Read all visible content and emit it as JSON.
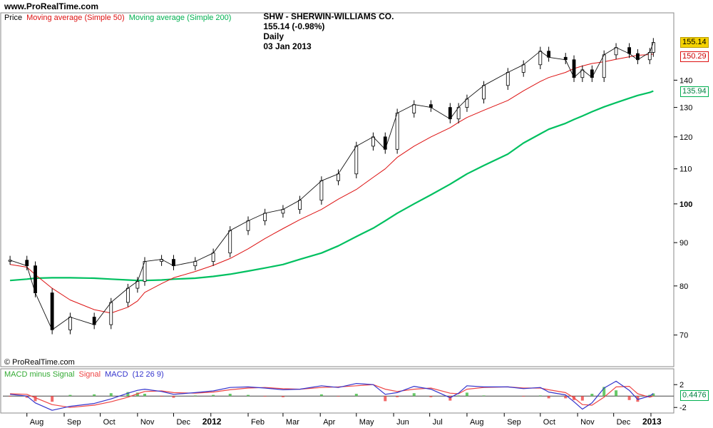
{
  "header": {
    "site": "www.ProRealTime.com",
    "ticker": "SHW - SHERWIN-WILLIAMS CO.",
    "quote": "155.14 (-0.98%)",
    "period": "Daily",
    "date": "03 Jan 2013"
  },
  "price_legend": {
    "price": "Price",
    "ma50": "Moving average (Simple 50)",
    "ma200": "Moving average (Simple 200)"
  },
  "macd_legend": {
    "hist": "MACD minus Signal",
    "signal": "Signal",
    "macd": "MACD",
    "params": "(12 26 9)"
  },
  "credit": "© ProRealTime.com",
  "colors": {
    "ma50": "#dd1111",
    "ma200": "#00c060",
    "macd": "#3333cc",
    "signal": "#ee4444",
    "hist": "#44bb44",
    "last_price_bg": "#f5d200"
  },
  "chart_data": [
    {
      "type": "line",
      "title": "SHW - SHERWIN-WILLIAMS CO. Daily (price, log scale)",
      "scale": "log",
      "ylim": [
        66,
        163
      ],
      "yticks": [
        70,
        80,
        90,
        100,
        110,
        120,
        130,
        140
      ],
      "x_labels": [
        "Aug",
        "Sep",
        "Oct",
        "Nov",
        "Dec",
        "2012",
        "Feb",
        "Mar",
        "Apr",
        "May",
        "Jun",
        "Jul",
        "Aug",
        "Sep",
        "Oct",
        "Nov",
        "Dec",
        "2013"
      ],
      "x": [
        "2011-07-18",
        "2011-08-01",
        "2011-08-08",
        "2011-08-22",
        "2011-09-06",
        "2011-09-26",
        "2011-10-10",
        "2011-10-24",
        "2011-11-01",
        "2011-11-07",
        "2011-11-21",
        "2011-12-01",
        "2011-12-19",
        "2012-01-03",
        "2012-01-17",
        "2012-02-01",
        "2012-02-15",
        "2012-03-01",
        "2012-03-15",
        "2012-04-02",
        "2012-04-16",
        "2012-05-01",
        "2012-05-15",
        "2012-05-25",
        "2012-06-04",
        "2012-06-18",
        "2012-07-02",
        "2012-07-18",
        "2012-07-25",
        "2012-08-01",
        "2012-08-15",
        "2012-09-04",
        "2012-09-17",
        "2012-10-01",
        "2012-10-08",
        "2012-10-22",
        "2012-10-29",
        "2012-11-05",
        "2012-11-13",
        "2012-11-23",
        "2012-12-03",
        "2012-12-14",
        "2012-12-21",
        "2012-12-31",
        "2013-01-03"
      ],
      "series": [
        {
          "name": "Price",
          "values": [
            85.8,
            84.5,
            78.5,
            71,
            73.5,
            72,
            76.5,
            79.5,
            81,
            85.5,
            86,
            84.5,
            85.5,
            87.5,
            93,
            95.5,
            97.5,
            98.5,
            101,
            106.5,
            108.5,
            117,
            120,
            116,
            128,
            131,
            130,
            126,
            130,
            133,
            138,
            143,
            146,
            151.5,
            149,
            148,
            141,
            144,
            141,
            150,
            153,
            150.5,
            148,
            151,
            155.14
          ]
        },
        {
          "name": "Moving average (Simple 50)",
          "values": [
            84.8,
            84.2,
            82.5,
            79.5,
            77,
            75,
            74.3,
            75.5,
            76.8,
            78.6,
            80.5,
            81.8,
            83.2,
            84.6,
            86.2,
            88.5,
            91,
            93.5,
            95.8,
            98.5,
            101.3,
            104,
            107.5,
            110,
            113.5,
            117,
            120,
            123,
            124.8,
            126.5,
            129,
            132.5,
            136,
            139.5,
            141,
            143,
            144.5,
            145.5,
            146.5,
            147.2,
            148.2,
            149.2,
            149.8,
            150.1,
            150.29
          ]
        },
        {
          "name": "Moving average (Simple 200)",
          "values": [
            81.2,
            81.5,
            81.7,
            81.8,
            81.8,
            81.7,
            81.5,
            81.3,
            81.2,
            81.2,
            81.3,
            81.5,
            81.7,
            82.1,
            82.6,
            83.3,
            84,
            84.8,
            86,
            87.5,
            89.2,
            91.5,
            93.6,
            95.5,
            97.5,
            100,
            102.5,
            105.5,
            107,
            108.5,
            111,
            114.5,
            118,
            121,
            122.5,
            124.5,
            125.8,
            127,
            128.5,
            130.2,
            131.7,
            133.3,
            134.3,
            135.4,
            135.94
          ]
        }
      ],
      "last_values": {
        "price": "155.14",
        "ma50": "150.29",
        "ma200": "135.94"
      }
    },
    {
      "type": "line",
      "title": "MACD minus Signal Signal MACD (12 26 9)",
      "ylim": [
        -2.6,
        2.9
      ],
      "yticks": [
        -2,
        2
      ],
      "x": [
        "2011-07-18",
        "2011-08-01",
        "2011-08-08",
        "2011-08-22",
        "2011-09-06",
        "2011-09-26",
        "2011-10-10",
        "2011-10-24",
        "2011-11-01",
        "2011-11-07",
        "2011-11-21",
        "2011-12-01",
        "2011-12-19",
        "2012-01-03",
        "2012-01-17",
        "2012-02-01",
        "2012-02-15",
        "2012-03-01",
        "2012-03-15",
        "2012-04-02",
        "2012-04-16",
        "2012-05-01",
        "2012-05-15",
        "2012-05-25",
        "2012-06-04",
        "2012-06-18",
        "2012-07-02",
        "2012-07-18",
        "2012-07-25",
        "2012-08-01",
        "2012-08-15",
        "2012-09-04",
        "2012-09-17",
        "2012-10-01",
        "2012-10-08",
        "2012-10-22",
        "2012-10-29",
        "2012-11-05",
        "2012-11-13",
        "2012-11-23",
        "2012-12-03",
        "2012-12-14",
        "2012-12-21",
        "2012-12-31",
        "2013-01-03"
      ],
      "series": [
        {
          "name": "MACD",
          "values": [
            0.3,
            0,
            -1.2,
            -2.5,
            -1.8,
            -1.3,
            -0.5,
            0.5,
            1.0,
            1.2,
            0.8,
            0.3,
            0.6,
            0.9,
            1.5,
            1.6,
            1.4,
            1.1,
            1.2,
            1.8,
            1.5,
            2.2,
            2.0,
            0.3,
            0.6,
            1.7,
            1.2,
            -0.3,
            0.5,
            1.8,
            1.6,
            1.6,
            1.3,
            1.5,
            0.7,
            0.2,
            -1.0,
            -2.3,
            -1.2,
            1.4,
            2.6,
            1.0,
            -0.6,
            0.0,
            0.45
          ]
        },
        {
          "name": "Signal",
          "values": [
            0.4,
            0.3,
            -0.3,
            -1.5,
            -2.0,
            -1.6,
            -1.0,
            -0.2,
            0.4,
            0.8,
            0.9,
            0.6,
            0.5,
            0.7,
            1.1,
            1.4,
            1.5,
            1.3,
            1.2,
            1.5,
            1.6,
            1.8,
            2.0,
            1.2,
            0.8,
            1.2,
            1.4,
            0.5,
            0.4,
            1.2,
            1.5,
            1.6,
            1.4,
            1.4,
            1.1,
            0.6,
            -0.3,
            -1.5,
            -1.6,
            -0.2,
            1.6,
            1.7,
            0.4,
            -0.2,
            0.0
          ]
        },
        {
          "name": "MACD minus Signal",
          "values": [
            -0.1,
            -0.3,
            -0.9,
            -1.0,
            0.2,
            0.3,
            0.5,
            0.7,
            0.6,
            0.4,
            -0.1,
            -0.3,
            0.1,
            0.2,
            0.4,
            0.2,
            -0.1,
            -0.2,
            0.0,
            0.3,
            -0.1,
            0.4,
            0.0,
            -0.9,
            -0.2,
            0.5,
            -0.2,
            -0.8,
            0.1,
            0.6,
            0.1,
            0.0,
            -0.1,
            0.1,
            -0.4,
            -0.4,
            -0.7,
            -0.8,
            0.4,
            1.6,
            1.0,
            -0.7,
            -1.0,
            0.2,
            0.45
          ]
        }
      ],
      "last_values": {
        "macd": "0.4476"
      }
    }
  ]
}
